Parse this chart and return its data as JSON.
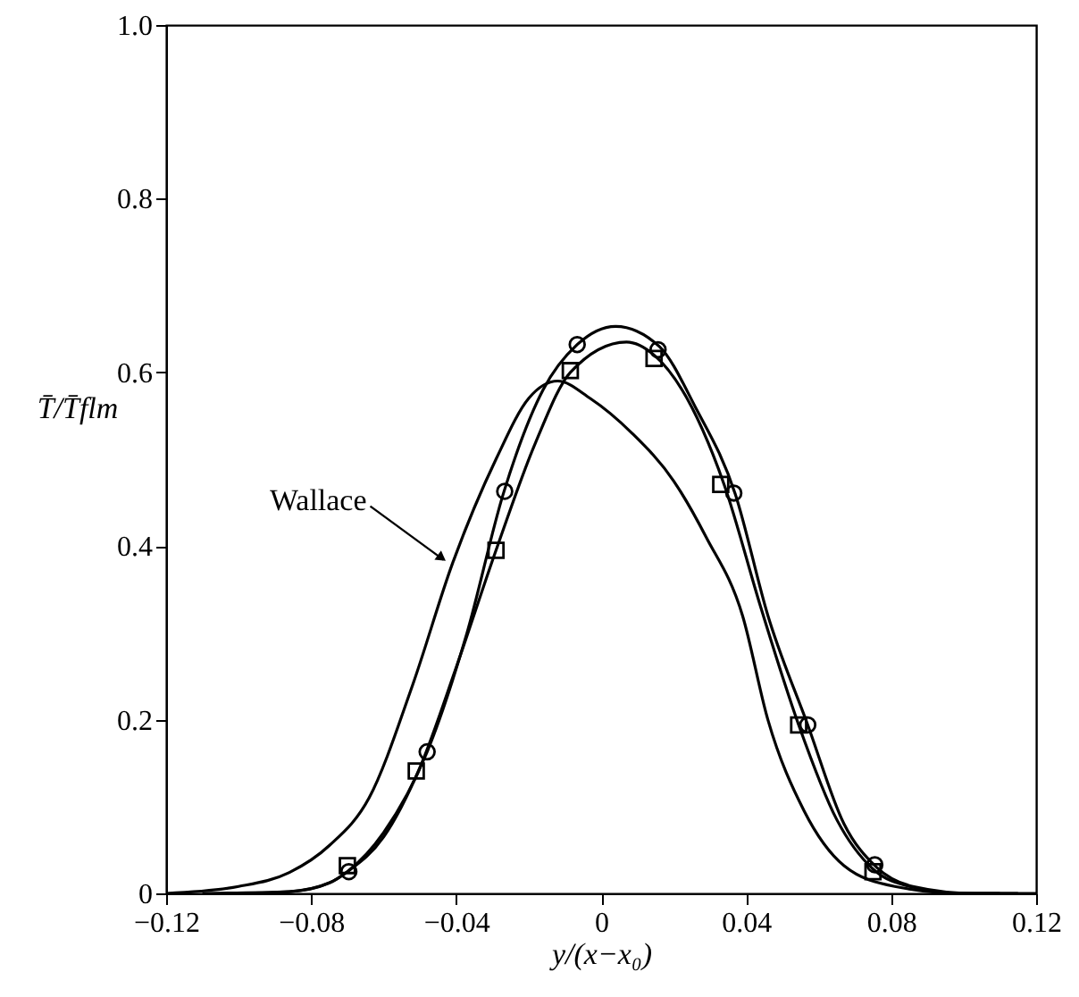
{
  "chart_data": {
    "type": "line",
    "xlabel": "y/(x−x₀)",
    "ylabel": "T̄/T̄flm",
    "xlim": [
      -0.12,
      0.12
    ],
    "xticks": [
      -0.12,
      -0.08,
      -0.04,
      0,
      0.04,
      0.08,
      0.12
    ],
    "ylim": [
      0,
      1.0
    ],
    "yticks": [
      0,
      0.2,
      0.4,
      0.6,
      0.8,
      {
        "value": 1.0,
        "label": "1.0"
      }
    ],
    "grid": false,
    "annotations": [
      {
        "text": "Wallace",
        "x": -0.042,
        "y": 0.38
      }
    ],
    "series": [
      {
        "color": "#000000",
        "x": [
          -0.12,
          -0.1,
          -0.086,
          -0.075,
          -0.064,
          -0.052,
          -0.041,
          -0.029,
          -0.02,
          -0.012,
          -0.003,
          0.0085,
          0.02,
          0.029,
          0.039,
          0.046,
          0.056,
          0.067,
          0.081,
          0.1,
          0.12
        ],
        "values": [
          0,
          0.008,
          0.024,
          0.055,
          0.11,
          0.24,
          0.38,
          0.5,
          0.57,
          0.59,
          0.57,
          0.53,
          0.475,
          0.41,
          0.32,
          0.2,
          0.095,
          0.032,
          0.008,
          0,
          0
        ]
      },
      {
        "color": "#000000",
        "x": [
          -0.11,
          -0.086,
          -0.075,
          -0.07,
          -0.06,
          -0.048,
          -0.037,
          -0.027,
          -0.016,
          -0.0066,
          0.004,
          0.016,
          0.026,
          0.037,
          0.046,
          0.057,
          0.067,
          0.076,
          0.086,
          0.103,
          0.115
        ],
        "values": [
          0,
          0.002,
          0.012,
          0.025,
          0.07,
          0.163,
          0.3,
          0.46,
          0.58,
          0.632,
          0.653,
          0.63,
          0.56,
          0.46,
          0.32,
          0.194,
          0.08,
          0.03,
          0.008,
          0,
          0
        ]
      },
      {
        "color": "#000000",
        "x": [
          -0.1,
          -0.086,
          -0.075,
          -0.07,
          -0.06,
          -0.05,
          -0.04,
          -0.029,
          -0.018,
          -0.0085,
          0.007,
          0.0146,
          0.025,
          0.034,
          0.044,
          0.0545,
          0.065,
          0.075,
          0.085,
          0.1,
          0.11
        ],
        "values": [
          0,
          0.002,
          0.012,
          0.025,
          0.065,
          0.145,
          0.26,
          0.395,
          0.52,
          0.6,
          0.635,
          0.62,
          0.56,
          0.47,
          0.33,
          0.194,
          0.085,
          0.028,
          0.008,
          0,
          0
        ]
      },
      {
        "type": "scatter",
        "marker": "circle",
        "color": "#000000",
        "x": [
          -0.0696,
          -0.048,
          -0.0266,
          -0.0066,
          0.0157,
          0.0366,
          0.057,
          0.0755
        ],
        "values": [
          0.025,
          0.163,
          0.463,
          0.632,
          0.626,
          0.461,
          0.194,
          0.033
        ]
      },
      {
        "type": "scatter",
        "marker": "square",
        "color": "#000000",
        "x": [
          -0.07,
          -0.051,
          -0.029,
          -0.0085,
          0.0146,
          0.033,
          0.0545,
          0.075
        ],
        "values": [
          0.032,
          0.141,
          0.395,
          0.602,
          0.616,
          0.471,
          0.194,
          0.025
        ]
      }
    ]
  }
}
